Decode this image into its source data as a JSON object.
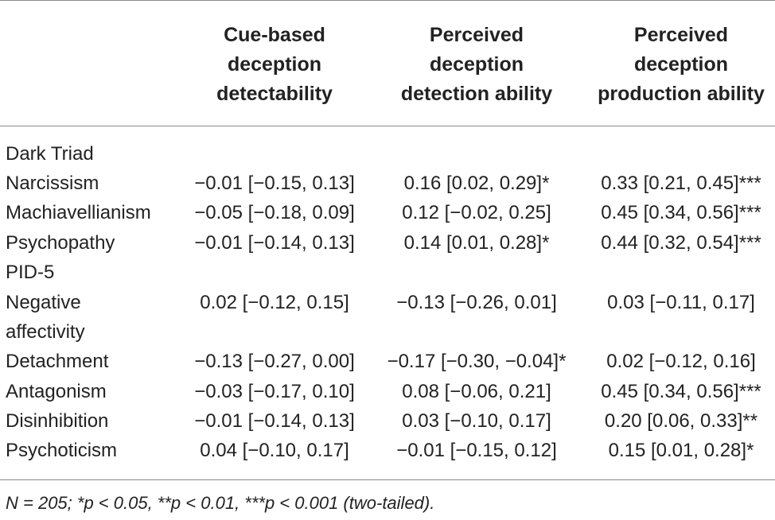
{
  "headers": [
    "",
    "Cue-based\ndeception\ndetectability",
    "Perceived\ndeception\ndetection ability",
    "Perceived\ndeception\nproduction ability"
  ],
  "header_lines": [
    [
      "Cue-based",
      "deception",
      "detectability"
    ],
    [
      "Perceived",
      "deception",
      "detection ability"
    ],
    [
      "Perceived",
      "deception",
      "production ability"
    ]
  ],
  "rows": [
    {
      "label": "Dark Triad",
      "c1": "",
      "c2": "",
      "c3": ""
    },
    {
      "label": "Narcissism",
      "c1": "−0.01 [−0.15, 0.13]",
      "c2": "0.16 [0.02, 0.29]*",
      "c3": "0.33 [0.21, 0.45]***"
    },
    {
      "label": "Machiavellianism",
      "c1": "−0.05 [−0.18, 0.09]",
      "c2": "0.12 [−0.02, 0.25]",
      "c3": "0.45 [0.34, 0.56]***"
    },
    {
      "label": "Psychopathy",
      "c1": "−0.01 [−0.14, 0.13]",
      "c2": "0.14 [0.01, 0.28]*",
      "c3": "0.44 [0.32, 0.54]***"
    },
    {
      "label": "PID-5",
      "c1": "",
      "c2": "",
      "c3": ""
    },
    {
      "label": "Negative",
      "c1": "0.02 [−0.12, 0.15]",
      "c2": "−0.13 [−0.26, 0.01]",
      "c3": "0.03 [−0.11, 0.17]"
    },
    {
      "label": "affectivity",
      "c1": "",
      "c2": "",
      "c3": ""
    },
    {
      "label": "Detachment",
      "c1": "−0.13 [−0.27, 0.00]",
      "c2": "−0.17 [−0.30, −0.04]*",
      "c3": "0.02 [−0.12, 0.16]"
    },
    {
      "label": "Antagonism",
      "c1": "−0.03 [−0.17, 0.10]",
      "c2": "0.08 [−0.06, 0.21]",
      "c3": "0.45 [0.34, 0.56]***"
    },
    {
      "label": "Disinhibition",
      "c1": "−0.01 [−0.14, 0.13]",
      "c2": "0.03 [−0.10, 0.17]",
      "c3": "0.20 [0.06, 0.33]**"
    },
    {
      "label": "Psychoticism",
      "c1": "0.04 [−0.10, 0.17]",
      "c2": "−0.01 [−0.15, 0.12]",
      "c3": "0.15 [0.01, 0.28]*"
    }
  ],
  "note": "N = 205; *p < 0.05, **p < 0.01, ***p < 0.001 (two-tailed)."
}
